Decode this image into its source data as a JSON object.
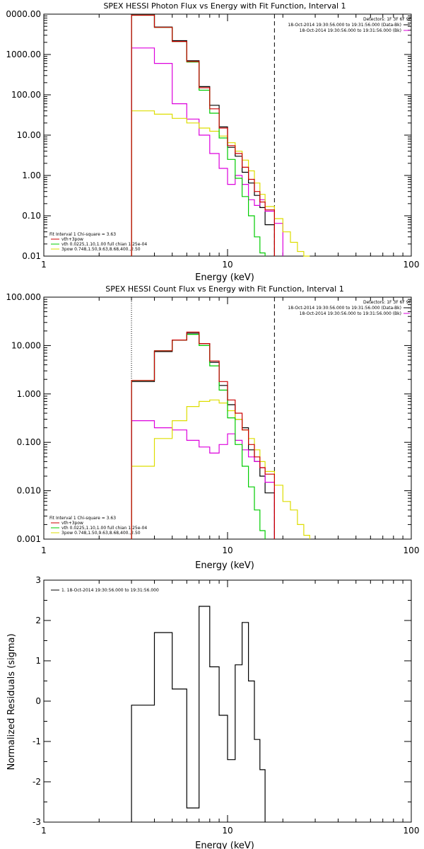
{
  "colors": {
    "data": "#000000",
    "total": "#cc0000",
    "vth": "#00cc00",
    "bpow": "#dddd00",
    "bkg": "#dd00dd"
  },
  "chart_data": [
    {
      "type": "line",
      "title": "SPEX HESSI Photon Flux vs Energy with Fit Function, Interval 1",
      "xlabel": "Energy (keV)",
      "ylabel": "",
      "xscale": "log",
      "yscale": "log",
      "xlim": [
        1,
        100
      ],
      "ylim": [
        0.01,
        10000
      ],
      "xticks": [
        "1",
        "10",
        "100"
      ],
      "yticks": [
        "0000.00",
        "1000.00",
        "100.00",
        "10.00",
        "1.00",
        "0.10",
        "0.01"
      ],
      "ytick_values": [
        10000,
        1000,
        100,
        10,
        1,
        0.1,
        0.01
      ],
      "fit_range_lines": {
        "start": 3,
        "end": 18
      },
      "bin_edges": [
        3,
        4,
        5,
        6,
        7,
        8,
        9,
        10,
        11,
        12,
        13,
        14,
        15,
        16,
        18,
        20,
        22,
        24,
        26,
        28
      ],
      "detectors_label": "Detectors: 1F 3F 6F 9F",
      "time_labels": [
        {
          "text": "18-Oct-2014 19:30:56.000 to 19:31:56.000 (Data-Bk)",
          "color": "#000000"
        },
        {
          "text": "18-Oct-2014 19:30:56.000 to 19:31:56.000 (Bk)",
          "color": "#dd00dd"
        }
      ],
      "legend_title": "Fit Interval 1   Chi-square = 3.63",
      "legend": [
        {
          "label": "vth+3pow",
          "color": "#cc0000"
        },
        {
          "label": "vth 0.0225,1.10,1.00  full chian 1.25e-04",
          "color": "#00cc00"
        },
        {
          "label": "3pow 0.748,1.50,9.63,8.68,400.,2.50",
          "color": "#dddd00"
        }
      ],
      "series": [
        {
          "name": "Data-Bk",
          "values": [
            9500,
            4800,
            2200,
            700,
            160,
            55,
            16,
            5.0,
            3.0,
            1.2,
            0.65,
            0.32,
            0.16,
            0.06,
            null,
            null,
            null,
            null,
            null
          ]
        },
        {
          "name": "vth+3pow",
          "values": [
            9400,
            4700,
            2100,
            670,
            150,
            45,
            15,
            5.5,
            3.5,
            1.6,
            0.8,
            0.4,
            0.22,
            0.14,
            null,
            null,
            null,
            null,
            null
          ]
        },
        {
          "name": "vth 0.0225,1.10,1.00",
          "values": [
            9400,
            4700,
            2100,
            650,
            130,
            35,
            8.5,
            2.5,
            0.85,
            0.3,
            0.1,
            0.03,
            0.012,
            null,
            null,
            null,
            null,
            null,
            null
          ]
        },
        {
          "name": "3pow 0.748,1.50,9.63,8.68,400.,2.50",
          "values": [
            40,
            33,
            26,
            20,
            15,
            12.5,
            9.5,
            6.5,
            4.0,
            2.4,
            1.3,
            0.65,
            0.34,
            0.17,
            0.085,
            0.04,
            0.022,
            0.013,
            0.009
          ]
        },
        {
          "name": "Bk",
          "values": [
            1450,
            600,
            60,
            25,
            10,
            3.5,
            1.5,
            0.6,
            1.0,
            0.6,
            0.25,
            0.18,
            0.25,
            0.13,
            0.065,
            null,
            null,
            null,
            null
          ]
        }
      ]
    },
    {
      "type": "line",
      "title": "SPEX HESSI Count Flux vs Energy with Fit Function, Interval 1",
      "xlabel": "Energy (keV)",
      "ylabel": "",
      "xscale": "log",
      "yscale": "log",
      "xlim": [
        1,
        100
      ],
      "ylim": [
        0.001,
        100
      ],
      "xticks": [
        "1",
        "10",
        "100"
      ],
      "yticks": [
        "100.000",
        "10.000",
        "1.000",
        "0.100",
        "0.010",
        "0.001"
      ],
      "ytick_values": [
        100,
        10,
        1,
        0.1,
        0.01,
        0.001
      ],
      "fit_range_lines": {
        "start": 3,
        "end": 18
      },
      "bin_edges": [
        3,
        4,
        5,
        6,
        7,
        8,
        9,
        10,
        11,
        12,
        13,
        14,
        15,
        16,
        18,
        20,
        22,
        24,
        26,
        28
      ],
      "detectors_label": "Detectors: 1F 3F 6F 9F",
      "time_labels": [
        {
          "text": "18-Oct-2014 19:30:56.000 to 19:31:56.000 (Data-Bk)",
          "color": "#000000"
        },
        {
          "text": "18-Oct-2014 19:30:56.000 to 19:31:56.000 (Bk)",
          "color": "#dd00dd"
        }
      ],
      "legend_title": "Fit Interval 1   Chi-square = 3.63",
      "legend": [
        {
          "label": "vth+3pow",
          "color": "#cc0000"
        },
        {
          "label": "vth 0.0225,1.10,1.00  full chian 1.25e-04",
          "color": "#00cc00"
        },
        {
          "label": "3pow 0.748,1.50,9.63,8.68,400.,2.50",
          "color": "#dddd00"
        }
      ],
      "series": [
        {
          "name": "Data-Bk",
          "values": [
            1.8,
            7.5,
            13,
            18,
            11,
            4.5,
            1.5,
            0.6,
            0.3,
            0.2,
            0.07,
            0.04,
            0.02,
            0.009,
            null,
            null,
            null,
            null,
            null
          ]
        },
        {
          "name": "vth+3pow",
          "values": [
            1.9,
            7.8,
            13,
            19,
            11,
            4.8,
            1.8,
            0.75,
            0.4,
            0.18,
            0.09,
            0.05,
            0.03,
            0.022,
            null,
            null,
            null,
            null,
            null
          ]
        },
        {
          "name": "vth 0.0225,1.10,1.00",
          "values": [
            1.9,
            7.8,
            13,
            17,
            10,
            3.8,
            1.2,
            0.32,
            0.09,
            0.032,
            0.012,
            0.004,
            0.0015,
            null,
            null,
            null,
            null,
            null,
            null
          ]
        },
        {
          "name": "3pow 0.748,1.50,9.63,8.68,400.,2.50",
          "values": [
            0.032,
            0.12,
            0.28,
            0.55,
            0.7,
            0.75,
            0.65,
            0.45,
            0.3,
            0.18,
            0.12,
            0.07,
            0.04,
            0.025,
            0.013,
            0.006,
            0.004,
            0.002,
            0.0012
          ]
        },
        {
          "name": "Bk",
          "values": [
            0.28,
            0.2,
            0.18,
            0.11,
            0.08,
            0.06,
            0.09,
            0.15,
            0.11,
            0.07,
            0.05,
            0.04,
            0.03,
            0.015,
            null,
            null,
            null,
            null,
            null
          ]
        }
      ]
    },
    {
      "type": "line",
      "title": "",
      "xlabel": "Energy (keV)",
      "ylabel": "Normalized Residuals (sigma)",
      "xscale": "log",
      "yscale": "linear",
      "xlim": [
        1,
        100
      ],
      "ylim": [
        -3,
        3
      ],
      "xticks": [
        "1",
        "10",
        "100"
      ],
      "yticks": [
        "3",
        "2",
        "1",
        "0",
        "-1",
        "-2",
        "-3"
      ],
      "ytick_values": [
        3,
        2,
        1,
        0,
        -1,
        -2,
        -3
      ],
      "bin_edges": [
        3,
        4,
        5,
        6,
        7,
        8,
        9,
        10,
        11,
        12,
        13,
        14,
        15,
        16,
        18
      ],
      "legend": [
        {
          "label": "1. 18-Oct-2014 19:30:56.000 to 19:31:56.000",
          "color": "#000000"
        }
      ],
      "series": [
        {
          "name": "1. 18-Oct-2014 19:30:56.000 to 19:31:56.000",
          "values": [
            -0.1,
            1.7,
            0.3,
            -2.65,
            2.35,
            0.85,
            -0.35,
            -1.45,
            0.9,
            1.95,
            0.5,
            -0.95,
            -1.7
          ]
        }
      ]
    }
  ]
}
